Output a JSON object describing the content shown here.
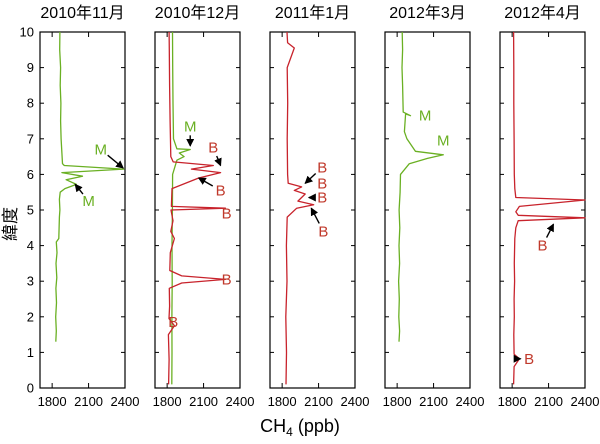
{
  "chart_data": {
    "type": "line",
    "shared": {
      "ylabel": "緯度",
      "xlabel_main": "CH",
      "xlabel_sub": "4",
      "xlabel_unit": " (ppb)",
      "xlim": [
        1700,
        2400
      ],
      "ylim": [
        0,
        10
      ],
      "xticks": [
        "1800",
        "2100",
        "2400"
      ],
      "xtick_values": [
        1800,
        2100,
        2400
      ],
      "yticks": [
        "0",
        "1",
        "2",
        "3",
        "4",
        "5",
        "6",
        "7",
        "8",
        "9",
        "10"
      ],
      "colors": {
        "green": "#6ab023",
        "red": "#c8232c",
        "label_green": "#6ab023",
        "label_red": "#c0392b"
      }
    },
    "panels": [
      {
        "title": "2010年11月",
        "series": [
          {
            "name": "M",
            "color": "green",
            "points": [
              [
                1830,
                1.3
              ],
              [
                1834,
                1.6
              ],
              [
                1829,
                2.0
              ],
              [
                1836,
                2.4
              ],
              [
                1831,
                2.8
              ],
              [
                1838,
                3.1
              ],
              [
                1832,
                3.5
              ],
              [
                1840,
                3.8
              ],
              [
                1834,
                4.1
              ],
              [
                1855,
                4.2
              ],
              [
                1857,
                4.5
              ],
              [
                1860,
                4.8
              ],
              [
                1864,
                5.0
              ],
              [
                1860,
                5.3
              ],
              [
                1866,
                5.5
              ],
              [
                1905,
                5.6
              ],
              [
                2000,
                5.72
              ],
              [
                1915,
                5.85
              ],
              [
                2050,
                5.95
              ],
              [
                1880,
                6.05
              ],
              [
                2390,
                6.15
              ],
              [
                1900,
                6.25
              ],
              [
                1885,
                6.3
              ],
              [
                1880,
                6.6
              ],
              [
                1874,
                7.0
              ],
              [
                1870,
                7.5
              ],
              [
                1872,
                8.0
              ],
              [
                1866,
                8.5
              ],
              [
                1870,
                9.0
              ],
              [
                1862,
                9.5
              ],
              [
                1864,
                10.0
              ]
            ]
          }
        ],
        "annotations": [
          {
            "label": "M",
            "color": "green",
            "from": [
              2200,
              6.7
            ],
            "to": [
              2385,
              6.18
            ]
          },
          {
            "label": "M",
            "color": "green",
            "from": [
              2100,
              5.25
            ],
            "to": [
              1990,
              5.72
            ]
          }
        ]
      },
      {
        "title": "2010年12月",
        "series": [
          {
            "name": "M",
            "color": "green",
            "points": [
              [
                1838,
                0.1
              ],
              [
                1840,
                1.0
              ],
              [
                1839,
                2.0
              ],
              [
                1842,
                3.0
              ],
              [
                1840,
                4.0
              ],
              [
                1843,
                5.0
              ],
              [
                1845,
                6.0
              ],
              [
                1880,
                6.4
              ],
              [
                1940,
                6.5
              ],
              [
                1900,
                6.6
              ],
              [
                1990,
                6.7
              ],
              [
                1880,
                6.72
              ],
              [
                1852,
                7.0
              ],
              [
                1848,
                8.0
              ],
              [
                1846,
                9.0
              ],
              [
                1844,
                10.0
              ]
            ]
          },
          {
            "name": "B",
            "color": "red",
            "points": [
              [
                1812,
                0.1
              ],
              [
                1816,
                0.8
              ],
              [
                1810,
                1.5
              ],
              [
                1860,
                1.75
              ],
              [
                1815,
                1.95
              ],
              [
                1820,
                2.3
              ],
              [
                1818,
                2.8
              ],
              [
                1920,
                2.95
              ],
              [
                2280,
                3.05
              ],
              [
                1920,
                3.15
              ],
              [
                1822,
                3.3
              ],
              [
                1826,
                3.8
              ],
              [
                1860,
                4.2
              ],
              [
                1830,
                4.4
              ],
              [
                1848,
                4.7
              ],
              [
                1832,
                5.0
              ],
              [
                2280,
                5.05
              ],
              [
                1835,
                5.1
              ],
              [
                1840,
                5.6
              ],
              [
                2060,
                5.9
              ],
              [
                2240,
                6.05
              ],
              [
                2000,
                6.15
              ],
              [
                2180,
                6.25
              ],
              [
                1850,
                6.35
              ],
              [
                1830,
                6.5
              ],
              [
                1824,
                7.5
              ],
              [
                1820,
                8.5
              ],
              [
                1818,
                9.5
              ],
              [
                1816,
                10.0
              ]
            ]
          }
        ],
        "annotations": [
          {
            "label": "M",
            "color": "green",
            "from": [
              1990,
              7.35
            ],
            "to": [
              1990,
              6.8
            ]
          },
          {
            "label": "B",
            "color": "red",
            "from": [
              2180,
              6.75
            ],
            "to": [
              2240,
              6.25
            ]
          },
          {
            "label": "B",
            "color": "red",
            "from": [
              2240,
              5.55
            ],
            "to": [
              2060,
              5.9
            ]
          },
          {
            "label": "B",
            "color": "red",
            "from": [
              2290,
              4.9
            ],
            "to": null
          },
          {
            "label": "B",
            "color": "red",
            "from": [
              2290,
              3.05
            ],
            "to": null
          },
          {
            "label": "B",
            "color": "red",
            "from": [
              1850,
              1.85
            ],
            "to": null
          }
        ]
      },
      {
        "title": "2011年1月",
        "series": [
          {
            "name": "B",
            "color": "red",
            "points": [
              [
                1832,
                0.1
              ],
              [
                1836,
                1.0
              ],
              [
                1830,
                2.0
              ],
              [
                1840,
                3.0
              ],
              [
                1835,
                4.0
              ],
              [
                1842,
                4.8
              ],
              [
                1920,
                5.05
              ],
              [
                2060,
                5.15
              ],
              [
                1930,
                5.25
              ],
              [
                1990,
                5.45
              ],
              [
                1900,
                5.55
              ],
              [
                1960,
                5.65
              ],
              [
                1850,
                5.75
              ],
              [
                1845,
                6.0
              ],
              [
                1842,
                7.0
              ],
              [
                1846,
                8.0
              ],
              [
                1842,
                9.0
              ],
              [
                1900,
                9.55
              ],
              [
                1845,
                9.7
              ],
              [
                1840,
                10.0
              ]
            ]
          }
        ],
        "annotations": [
          {
            "label": "B",
            "color": "red",
            "from": [
              2130,
              6.2
            ],
            "to": [
              1990,
              5.75
            ]
          },
          {
            "label": "B",
            "color": "red",
            "from": [
              2130,
              5.75
            ],
            "to": null
          },
          {
            "label": "B",
            "color": "red",
            "from": [
              2130,
              5.35
            ],
            "to": [
              2020,
              5.35
            ]
          },
          {
            "label": "B",
            "color": "red",
            "from": [
              2140,
              4.4
            ],
            "to": [
              2040,
              5.05
            ]
          }
        ]
      },
      {
        "title": "2012年3月",
        "series": [
          {
            "name": "M",
            "color": "green",
            "points": [
              [
                1815,
                1.3
              ],
              [
                1820,
                1.6
              ],
              [
                1814,
                2.0
              ],
              [
                1818,
                2.5
              ],
              [
                1812,
                3.0
              ],
              [
                1820,
                3.5
              ],
              [
                1815,
                4.0
              ],
              [
                1822,
                4.5
              ],
              [
                1816,
                5.0
              ],
              [
                1824,
                5.5
              ],
              [
                1828,
                6.0
              ],
              [
                1900,
                6.3
              ],
              [
                2050,
                6.45
              ],
              [
                2180,
                6.55
              ],
              [
                1950,
                6.65
              ],
              [
                1880,
                7.0
              ],
              [
                1860,
                7.2
              ],
              [
                1870,
                7.7
              ],
              [
                1910,
                7.65
              ],
              [
                1850,
                7.75
              ],
              [
                1845,
                8.5
              ],
              [
                1840,
                9.0
              ],
              [
                1845,
                9.5
              ],
              [
                1842,
                10.0
              ]
            ]
          }
        ],
        "annotations": [
          {
            "label": "M",
            "color": "green",
            "from": [
              2030,
              7.65
            ],
            "to": null
          },
          {
            "label": "M",
            "color": "green",
            "from": [
              2180,
              6.95
            ],
            "to": null
          }
        ]
      },
      {
        "title": "2012年4月",
        "series": [
          {
            "name": "B",
            "color": "red",
            "points": [
              [
                1812,
                0.1
              ],
              [
                1816,
                0.6
              ],
              [
                1860,
                0.82
              ],
              [
                1816,
                0.95
              ],
              [
                1814,
                1.5
              ],
              [
                1818,
                2.0
              ],
              [
                1816,
                2.5
              ],
              [
                1820,
                3.0
              ],
              [
                1818,
                3.5
              ],
              [
                1822,
                4.2
              ],
              [
                1830,
                4.5
              ],
              [
                1850,
                4.7
              ],
              [
                2400,
                4.78
              ],
              [
                1850,
                4.85
              ],
              [
                1830,
                4.95
              ],
              [
                1860,
                5.1
              ],
              [
                2400,
                5.28
              ],
              [
                1830,
                5.35
              ],
              [
                1822,
                5.6
              ],
              [
                1818,
                6.0
              ],
              [
                1816,
                7.0
              ],
              [
                1814,
                8.0
              ],
              [
                1814,
                9.0
              ],
              [
                1812,
                10.0
              ]
            ]
          }
        ],
        "annotations": [
          {
            "label": "B",
            "color": "red",
            "from": [
              2050,
              4.0
            ],
            "to": [
              2140,
              4.6
            ]
          },
          {
            "label": "B",
            "color": "red",
            "from": [
              1940,
              0.82
            ],
            "to": [
              1870,
              0.82
            ]
          }
        ]
      }
    ]
  }
}
